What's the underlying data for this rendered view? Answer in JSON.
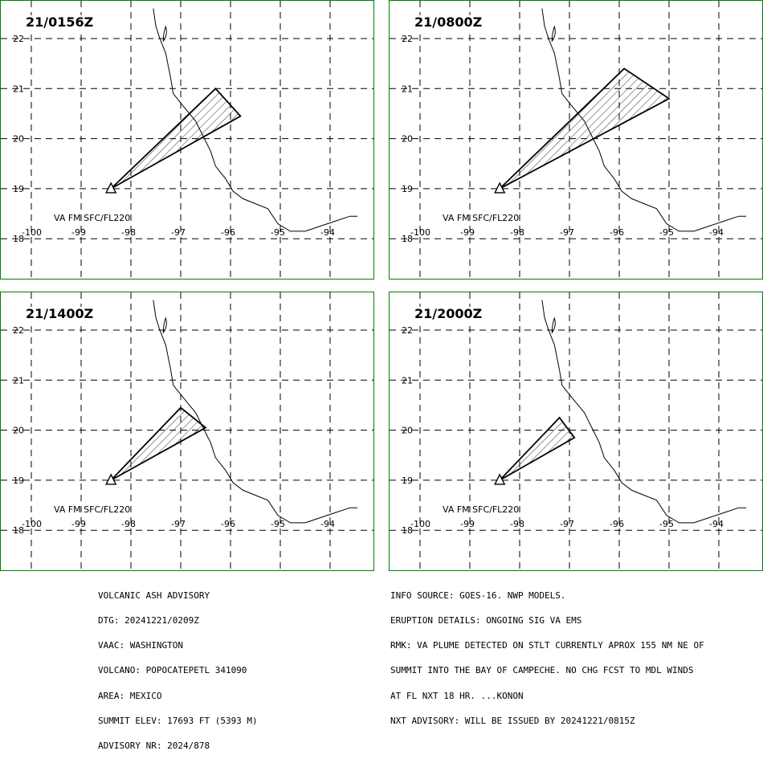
{
  "panels": [
    {
      "time": "21/0156Z",
      "plume": [
        [
          -98.4,
          19.0
        ],
        [
          -96.3,
          21.0
        ],
        [
          -95.8,
          20.45
        ]
      ]
    },
    {
      "time": "21/0800Z",
      "plume": [
        [
          -98.4,
          19.0
        ],
        [
          -95.9,
          21.4
        ],
        [
          -95.0,
          20.8
        ]
      ]
    },
    {
      "time": "21/1400Z",
      "plume": [
        [
          -98.4,
          19.0
        ],
        [
          -97.0,
          20.45
        ],
        [
          -96.5,
          20.05
        ]
      ]
    },
    {
      "time": "21/2000Z",
      "plume": [
        [
          -98.4,
          19.0
        ],
        [
          -97.2,
          20.25
        ],
        [
          -96.9,
          19.85
        ]
      ]
    }
  ],
  "map": {
    "lon_labels": [
      "-100",
      "-99",
      "-98",
      "-97",
      "-96",
      "-95",
      "-94"
    ],
    "lat_labels": [
      "22",
      "21",
      "20",
      "19",
      "18"
    ],
    "va_label": "VA FM SFC/FL220",
    "volcano": {
      "lon": -98.4,
      "lat": 19.0
    },
    "coastline": [
      [
        -97.55,
        22.6
      ],
      [
        -97.5,
        22.25
      ],
      [
        -97.42,
        22.0
      ],
      [
        -97.3,
        21.7
      ],
      [
        -97.25,
        21.45
      ],
      [
        -97.2,
        21.2
      ],
      [
        -97.15,
        20.9
      ],
      [
        -96.95,
        20.65
      ],
      [
        -96.7,
        20.35
      ],
      [
        -96.55,
        20.05
      ],
      [
        -96.4,
        19.75
      ],
      [
        -96.3,
        19.45
      ],
      [
        -96.1,
        19.2
      ],
      [
        -95.95,
        18.95
      ],
      [
        -95.75,
        18.8
      ],
      [
        -95.5,
        18.7
      ],
      [
        -95.25,
        18.6
      ],
      [
        -95.05,
        18.3
      ],
      [
        -94.8,
        18.15
      ],
      [
        -94.5,
        18.15
      ],
      [
        -94.2,
        18.25
      ],
      [
        -93.9,
        18.35
      ],
      [
        -93.6,
        18.45
      ],
      [
        -93.45,
        18.45
      ]
    ],
    "colors": {
      "grid": "#000000",
      "frame": "#008000"
    }
  },
  "footer_left": [
    "VOLCANIC ASH ADVISORY",
    "DTG: 20241221/0209Z",
    "VAAC: WASHINGTON",
    "VOLCANO: POPOCATEPETL 341090",
    "AREA: MEXICO",
    "SUMMIT ELEV: 17693 FT (5393 M)",
    "ADVISORY NR: 2024/878"
  ],
  "footer_right": [
    "INFO SOURCE: GOES-16. NWP MODELS.",
    "ERUPTION DETAILS: ONGOING SIG VA EMS",
    "RMK: VA PLUME DETECTED ON STLT CURRENTLY APROX 155 NM NE OF",
    "SUMMIT INTO THE BAY OF CAMPECHE. NO CHG FCST TO MDL WINDS",
    "AT FL NXT 18 HR. ...KONON",
    "NXT ADVISORY: WILL BE ISSUED BY 20241221/0815Z"
  ]
}
